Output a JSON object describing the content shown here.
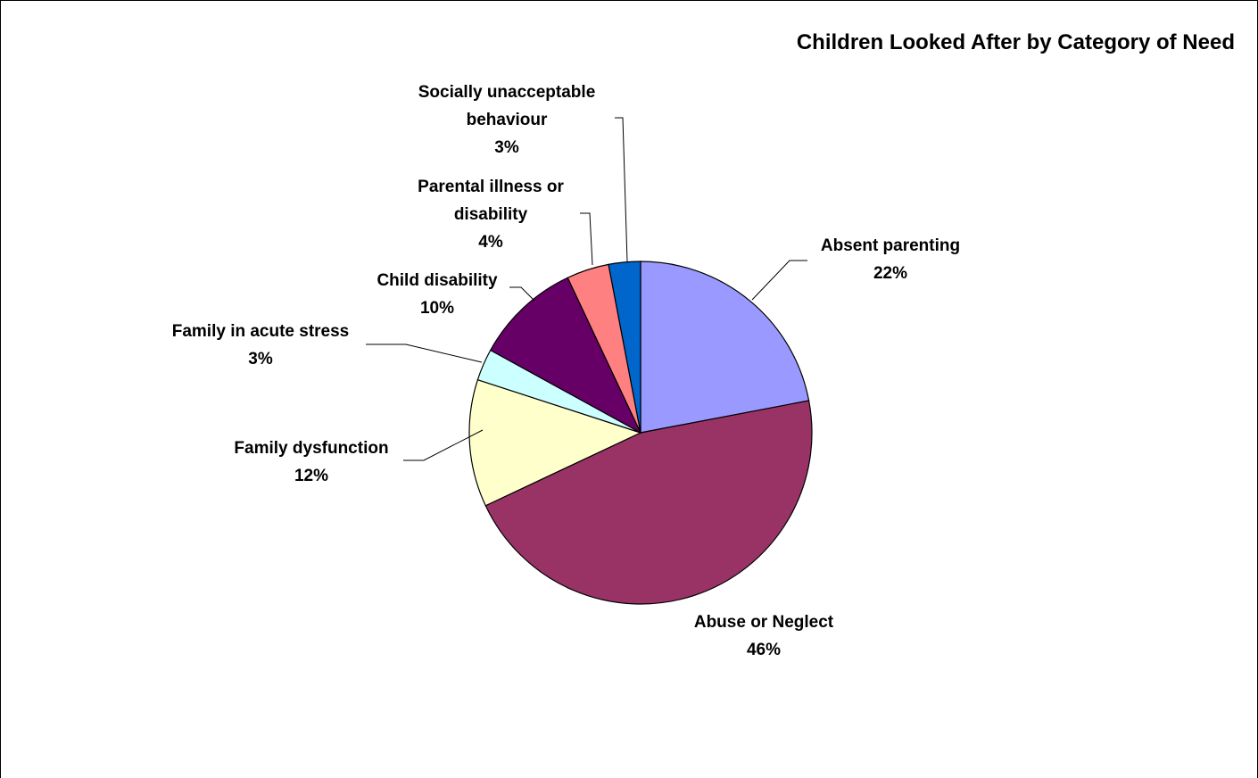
{
  "chart_data": {
    "type": "pie",
    "title": "Children Looked After by Category of Need",
    "slices": [
      {
        "label_lines": [
          "Absent parenting"
        ],
        "pct_label": "22%",
        "value": 22,
        "color": "#9999ff"
      },
      {
        "label_lines": [
          "Abuse or Neglect"
        ],
        "pct_label": "46%",
        "value": 46,
        "color": "#993366"
      },
      {
        "label_lines": [
          "Family dysfunction"
        ],
        "pct_label": "12%",
        "value": 12,
        "color": "#ffffcc"
      },
      {
        "label_lines": [
          "Family in acute stress"
        ],
        "pct_label": "3%",
        "value": 3,
        "color": "#ccffff"
      },
      {
        "label_lines": [
          "Child disability"
        ],
        "pct_label": "10%",
        "value": 10,
        "color": "#660066"
      },
      {
        "label_lines": [
          "Parental illness or",
          "disability"
        ],
        "pct_label": "4%",
        "value": 4,
        "color": "#ff8080"
      },
      {
        "label_lines": [
          "Socially unacceptable",
          "behaviour"
        ],
        "pct_label": "3%",
        "value": 3,
        "color": "#0066cc"
      }
    ]
  }
}
